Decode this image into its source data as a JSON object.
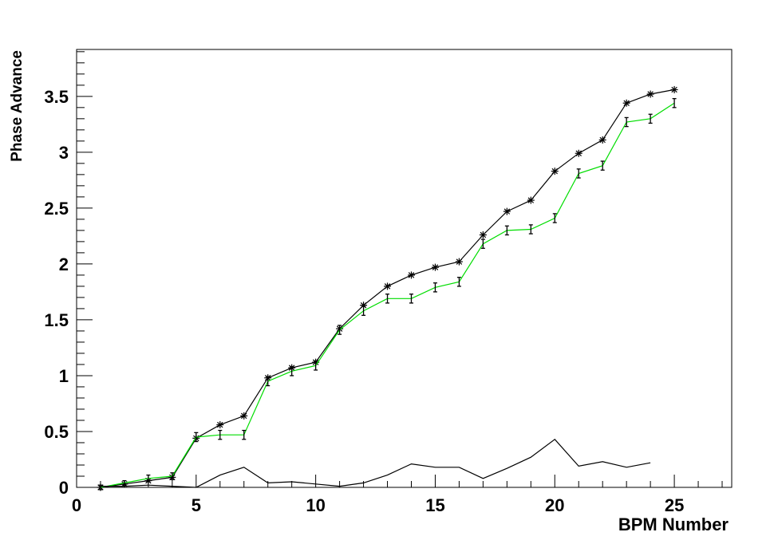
{
  "chart_data": {
    "type": "line",
    "title": "",
    "xlabel": "BPM Number",
    "ylabel": "Phase Advance",
    "xlim": [
      0,
      27.4
    ],
    "ylim": [
      0,
      3.92
    ],
    "x_ticks": [
      0,
      5,
      10,
      15,
      20,
      25
    ],
    "x_tick_labels": [
      "0",
      "5",
      "10",
      "15",
      "20",
      "25"
    ],
    "y_ticks": [
      0,
      0.5,
      1,
      1.5,
      2,
      2.5,
      3,
      3.5
    ],
    "y_tick_labels": [
      "0",
      "0.5",
      "1",
      "1.5",
      "2",
      "2.5",
      "3",
      "3.5"
    ],
    "grid": false,
    "series": [
      {
        "color": "#000000",
        "marker": "star",
        "x": [
          1,
          2,
          3,
          4,
          5,
          6,
          7,
          8,
          9,
          10,
          11,
          12,
          13,
          14,
          15,
          16,
          17,
          18,
          19,
          20,
          21,
          22,
          23,
          24,
          25
        ],
        "y": [
          0.0,
          0.03,
          0.06,
          0.09,
          0.44,
          0.56,
          0.64,
          0.98,
          1.07,
          1.12,
          1.42,
          1.63,
          1.8,
          1.9,
          1.97,
          2.02,
          2.26,
          2.47,
          2.57,
          2.83,
          2.99,
          3.11,
          3.44,
          3.52,
          3.56
        ]
      },
      {
        "color": "#00dd00",
        "marker": "errorbar",
        "x": [
          1,
          2,
          3,
          4,
          5,
          6,
          7,
          8,
          9,
          10,
          11,
          12,
          13,
          14,
          15,
          16,
          17,
          18,
          19,
          20,
          21,
          22,
          23,
          24,
          25
        ],
        "y": [
          0.0,
          0.04,
          0.08,
          0.1,
          0.45,
          0.47,
          0.47,
          0.95,
          1.04,
          1.09,
          1.41,
          1.58,
          1.69,
          1.69,
          1.79,
          1.84,
          2.18,
          2.3,
          2.31,
          2.41,
          2.81,
          2.88,
          3.27,
          3.3,
          3.44
        ],
        "yerr": [
          0.02,
          0.02,
          0.03,
          0.03,
          0.04,
          0.04,
          0.04,
          0.04,
          0.04,
          0.04,
          0.04,
          0.04,
          0.04,
          0.04,
          0.04,
          0.04,
          0.04,
          0.04,
          0.04,
          0.04,
          0.04,
          0.04,
          0.04,
          0.04,
          0.04
        ]
      },
      {
        "color": "#000000",
        "marker": "none",
        "x": [
          1,
          2,
          3,
          4,
          5,
          6,
          7,
          8,
          9,
          10,
          11,
          12,
          13,
          14,
          15,
          16,
          17,
          18,
          19,
          20,
          21,
          22,
          23,
          24
        ],
        "y": [
          0.01,
          0.01,
          0.02,
          0.01,
          0.0,
          0.11,
          0.18,
          0.04,
          0.05,
          0.03,
          0.01,
          0.04,
          0.11,
          0.21,
          0.18,
          0.18,
          0.08,
          0.17,
          0.27,
          0.43,
          0.19,
          0.23,
          0.18,
          0.22
        ]
      }
    ]
  }
}
